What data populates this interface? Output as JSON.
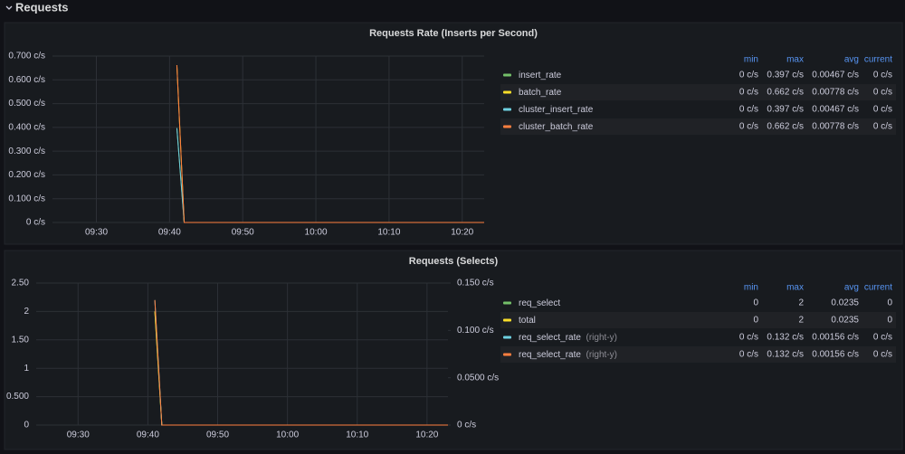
{
  "section_title": "Requests",
  "chart_data": [
    {
      "type": "line",
      "title": "Requests Rate (Inserts per Second)",
      "x": [
        581,
        582,
        623
      ],
      "xlim": [
        564,
        623
      ],
      "xticks": [
        {
          "value": 570,
          "label": "09:30"
        },
        {
          "value": 580,
          "label": "09:40"
        },
        {
          "value": 590,
          "label": "09:50"
        },
        {
          "value": 600,
          "label": "10:00"
        },
        {
          "value": 610,
          "label": "10:10"
        },
        {
          "value": 620,
          "label": "10:20"
        }
      ],
      "ylim": [
        0,
        0.7
      ],
      "yticks": [
        {
          "value": 0,
          "label": "0 c/s"
        },
        {
          "value": 0.1,
          "label": "0.100 c/s"
        },
        {
          "value": 0.2,
          "label": "0.200 c/s"
        },
        {
          "value": 0.3,
          "label": "0.300 c/s"
        },
        {
          "value": 0.4,
          "label": "0.400 c/s"
        },
        {
          "value": 0.5,
          "label": "0.500 c/s"
        },
        {
          "value": 0.6,
          "label": "0.600 c/s"
        },
        {
          "value": 0.7,
          "label": "0.700 c/s"
        }
      ],
      "grid": true,
      "legend_columns": [
        "min",
        "max",
        "avg",
        "current"
      ],
      "series": [
        {
          "name": "insert_rate",
          "color": "#73bf69",
          "values": [
            0.397,
            0,
            0
          ],
          "stats": [
            "0 c/s",
            "0.397 c/s",
            "0.00467 c/s",
            "0 c/s"
          ]
        },
        {
          "name": "batch_rate",
          "color": "#fade2a",
          "values": [
            0.662,
            0,
            0
          ],
          "stats": [
            "0 c/s",
            "0.662 c/s",
            "0.00778 c/s",
            "0 c/s"
          ]
        },
        {
          "name": "cluster_insert_rate",
          "color": "#6ed0e0",
          "values": [
            0.397,
            0,
            0
          ],
          "stats": [
            "0 c/s",
            "0.397 c/s",
            "0.00467 c/s",
            "0 c/s"
          ]
        },
        {
          "name": "cluster_batch_rate",
          "color": "#ff7f3f",
          "values": [
            0.662,
            0,
            0
          ],
          "stats": [
            "0 c/s",
            "0.662 c/s",
            "0.00778 c/s",
            "0 c/s"
          ]
        }
      ]
    },
    {
      "type": "line",
      "title": "Requests (Selects)",
      "x": [
        581,
        582,
        623
      ],
      "xlim": [
        564,
        623
      ],
      "xticks": [
        {
          "value": 570,
          "label": "09:30"
        },
        {
          "value": 580,
          "label": "09:40"
        },
        {
          "value": 590,
          "label": "09:50"
        },
        {
          "value": 600,
          "label": "10:00"
        },
        {
          "value": 610,
          "label": "10:10"
        },
        {
          "value": 620,
          "label": "10:20"
        }
      ],
      "ylim": [
        0,
        2.5
      ],
      "yticks": [
        0,
        {
          "value": 0.5,
          "label": "0.500"
        },
        1,
        {
          "value": 1.5,
          "label": "1.50"
        },
        2,
        {
          "value": 2.5,
          "label": "2.50"
        }
      ],
      "y2lim": [
        0,
        0.15
      ],
      "y2ticks": [
        {
          "value": 0,
          "label": "0 c/s"
        },
        {
          "value": 0.05,
          "label": "0.0500 c/s"
        },
        {
          "value": 0.1,
          "label": "0.100 c/s"
        },
        {
          "value": 0.15,
          "label": "0.150 c/s"
        }
      ],
      "grid": true,
      "right_axis_note": "(right-y)",
      "legend_columns": [
        "min",
        "max",
        "avg",
        "current"
      ],
      "series": [
        {
          "name": "req_select",
          "color": "#73bf69",
          "values": [
            2,
            0,
            0
          ],
          "stats": [
            "0",
            "2",
            "0.0235",
            "0"
          ]
        },
        {
          "name": "total",
          "color": "#fade2a",
          "values": [
            2,
            0,
            0
          ],
          "stats": [
            "0",
            "2",
            "0.0235",
            "0"
          ]
        },
        {
          "name": "req_select_rate",
          "color": "#6ed0e0",
          "axis": "y2",
          "values": [
            0.132,
            0,
            0
          ],
          "stats": [
            "0 c/s",
            "0.132 c/s",
            "0.00156 c/s",
            "0 c/s"
          ]
        },
        {
          "name": "req_select_rate",
          "color": "#ff7f3f",
          "axis": "y2",
          "values": [
            0.132,
            0,
            0
          ],
          "stats": [
            "0 c/s",
            "0.132 c/s",
            "0.00156 c/s",
            "0 c/s"
          ]
        }
      ]
    }
  ]
}
